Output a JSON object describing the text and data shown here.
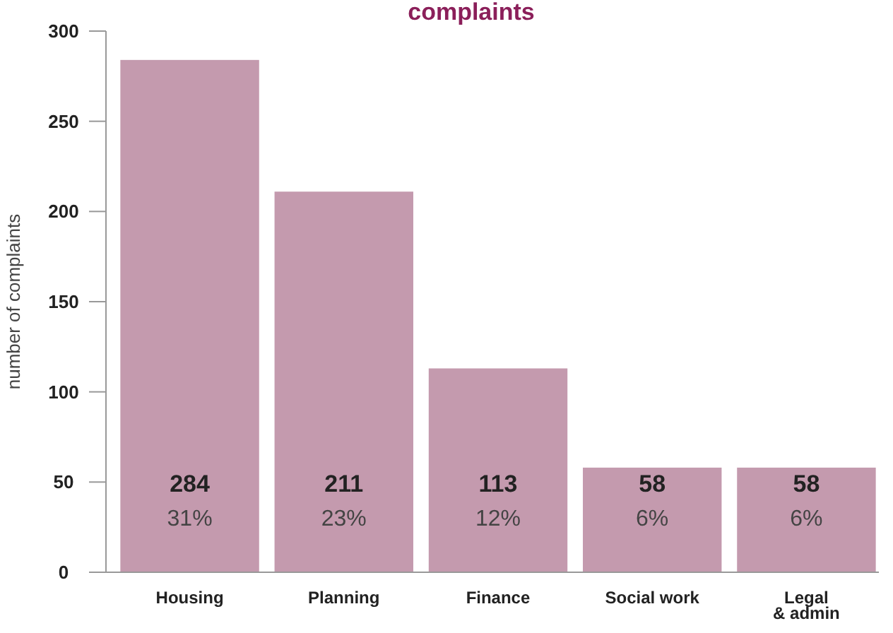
{
  "chart_data": {
    "type": "bar",
    "title": "complaints",
    "ylabel": "number of complaints",
    "categories": [
      "Housing",
      "Planning",
      "Finance",
      "Social work",
      "Legal\n& admin"
    ],
    "values": [
      284,
      211,
      113,
      58,
      58
    ],
    "color": "#c49aae",
    "value_labels": [
      "284\n31%",
      "211\n23%",
      "113\n12%",
      "58\n6%",
      "58\n6%"
    ],
    "ylim": [
      0,
      300
    ],
    "yticks": [
      0,
      50,
      100,
      150,
      200,
      250,
      300
    ],
    "grid": false
  }
}
